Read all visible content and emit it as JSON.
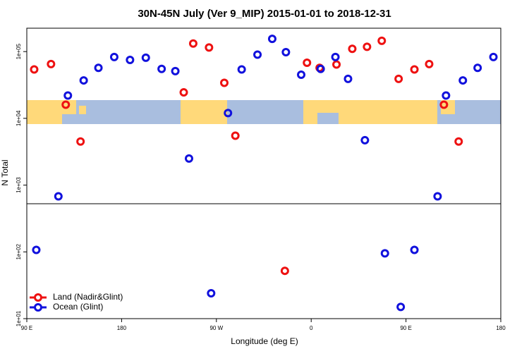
{
  "chart_data": {
    "type": "scatter",
    "title": "30N-45N July (Ver 9_MIP)   2015-01-01 to 2018-12-31",
    "x_label": "Longitude (deg E)",
    "y_label": "N Total",
    "log_y": true,
    "legend": "bottom-left",
    "xlim": [
      90,
      540
    ],
    "xticks": [
      {
        "value": 90,
        "label": "90 E"
      },
      180,
      {
        "value": 270,
        "label": "90 W"
      },
      {
        "value": 360,
        "label": "0"
      },
      {
        "value": 450,
        "label": "90 E"
      },
      {
        "value": 540,
        "label": "180"
      }
    ],
    "ylim": [
      10,
      224000
    ],
    "yticks": [
      {
        "value": 10,
        "label": "1e+01"
      },
      {
        "value": 100,
        "label": "1e+02"
      },
      {
        "value": 1000,
        "label": "1e+03"
      },
      {
        "value": 10000,
        "label": "1e+04"
      },
      {
        "value": 100000,
        "label": "1e+05"
      }
    ],
    "series": [
      {
        "name": "Land (Nadir&Glint)",
        "color": "#ee1111",
        "x": [
          97,
          113,
          127,
          141,
          239,
          248,
          263,
          277.5,
          288,
          335,
          356,
          368,
          384,
          399,
          413,
          427,
          443,
          458,
          472,
          486,
          500
        ],
        "values": [
          54000,
          65000,
          16000,
          4500,
          24500,
          132000,
          115000,
          34000,
          5500,
          52,
          68000,
          57000,
          64000,
          110000,
          118000,
          145000,
          39000,
          54000,
          65000,
          16000,
          4500
        ]
      },
      {
        "name": "Ocean (Glint)",
        "color": "#1111dd",
        "x": [
          99,
          120,
          129,
          144,
          158,
          173,
          188,
          203,
          218,
          231,
          244,
          265,
          281,
          294,
          309,
          323,
          336,
          350.5,
          369,
          383,
          395,
          411,
          430,
          445,
          458,
          480,
          488,
          504,
          518,
          533
        ],
        "values": [
          107,
          680,
          22000,
          37000,
          57000,
          83000,
          75000,
          81000,
          55000,
          51000,
          2500,
          24,
          12000,
          54000,
          90000,
          155000,
          98000,
          45000,
          55000,
          83000,
          39000,
          4700,
          95,
          15,
          107,
          680,
          22000,
          37000,
          57000,
          83000
        ]
      }
    ]
  }
}
